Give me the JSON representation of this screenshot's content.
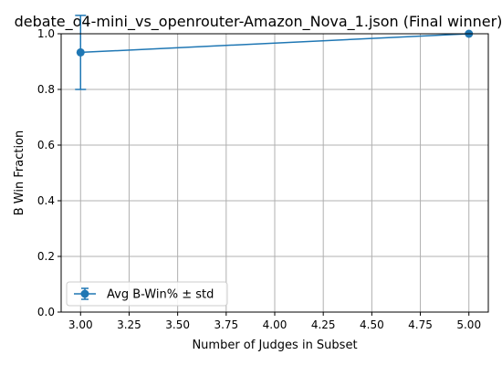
{
  "chart_data": {
    "type": "line",
    "title": "debate_o4-mini_vs_openrouter-Amazon_Nova_1.json (Final winner)",
    "xlabel": "Number of Judges in Subset",
    "ylabel": "B Win Fraction",
    "xlim": [
      2.9,
      5.1
    ],
    "ylim": [
      0.0,
      1.0
    ],
    "x_ticks": [
      3.0,
      3.25,
      3.5,
      3.75,
      4.0,
      4.25,
      4.5,
      4.75,
      5.0
    ],
    "x_tick_labels": [
      "3.00",
      "3.25",
      "3.50",
      "3.75",
      "4.00",
      "4.25",
      "4.50",
      "4.75",
      "5.00"
    ],
    "y_ticks": [
      0.0,
      0.2,
      0.4,
      0.6,
      0.8,
      1.0
    ],
    "y_tick_labels": [
      "0.0",
      "0.2",
      "0.4",
      "0.6",
      "0.8",
      "1.0"
    ],
    "grid": true,
    "legend_position": "lower-left",
    "series": [
      {
        "name": "Avg B-Win% ± std",
        "color": "#1f77b4",
        "marker": "circle",
        "x": [
          3,
          5
        ],
        "y": [
          0.933,
          1.0
        ],
        "yerr": [
          0.133,
          0.0
        ]
      }
    ]
  }
}
